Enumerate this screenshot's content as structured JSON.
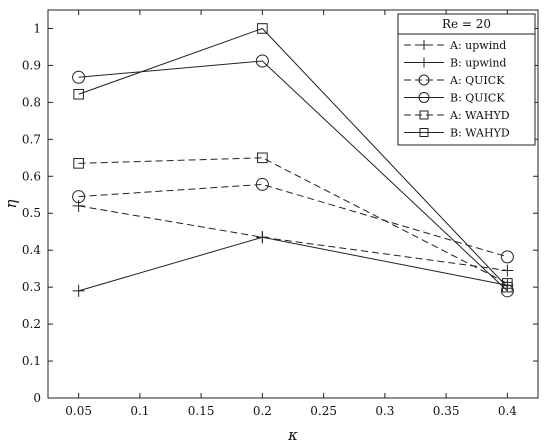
{
  "chart_data": {
    "type": "line",
    "title": "",
    "xlabel": "κ",
    "ylabel": "η",
    "xlim": [
      0.025,
      0.425
    ],
    "ylim": [
      0,
      1.05
    ],
    "xticks": [
      0.05,
      0.1,
      0.15,
      0.2,
      0.25,
      0.3,
      0.35,
      0.4
    ],
    "xtick_labels": [
      "0.05",
      "0.1",
      "0.15",
      "0.2",
      "0.25",
      "0.3",
      "0.35",
      "0.4"
    ],
    "yticks": [
      0,
      0.1,
      0.2,
      0.3,
      0.4,
      0.5,
      0.6,
      0.7,
      0.8,
      0.9,
      1
    ],
    "ytick_labels": [
      "0",
      "0.1",
      "0.2",
      "0.3",
      "0.4",
      "0.5",
      "0.6",
      "0.7",
      "0.8",
      "0.9",
      "1"
    ],
    "grid": false,
    "legend_title": "Re = 20",
    "legend_position": "top-right",
    "x": [
      0.05,
      0.2,
      0.4
    ],
    "series": [
      {
        "name": "A: upwind",
        "values": [
          0.52,
          0.435,
          0.345
        ],
        "dash": "dashed",
        "marker": "plus"
      },
      {
        "name": "B: upwind",
        "values": [
          0.29,
          0.435,
          0.305
        ],
        "dash": "solid",
        "marker": "plus"
      },
      {
        "name": "A: QUICK",
        "values": [
          0.545,
          0.578,
          0.382
        ],
        "dash": "dashed",
        "marker": "circle"
      },
      {
        "name": "B: QUICK",
        "values": [
          0.868,
          0.912,
          0.29
        ],
        "dash": "solid",
        "marker": "circle"
      },
      {
        "name": "A: WAHYD",
        "values": [
          0.635,
          0.65,
          0.31
        ],
        "dash": "dashed",
        "marker": "square"
      },
      {
        "name": "B: WAHYD",
        "values": [
          0.822,
          1.0,
          0.3
        ],
        "dash": "solid",
        "marker": "square"
      }
    ]
  }
}
